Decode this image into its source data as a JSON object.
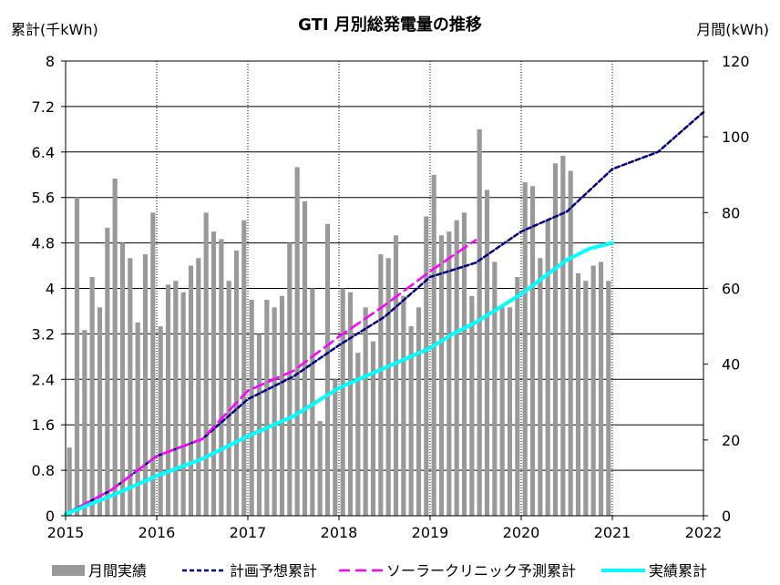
{
  "chart_data": {
    "type": "bar+line",
    "title": "GTI 月別総発電量の推移",
    "y_left_label": "累計(千kWh)",
    "y_right_label": "月間(kWh)",
    "y_left_range": [
      0,
      8
    ],
    "y_left_ticks": [
      "0",
      "0.8",
      "1.6",
      "2.4",
      "3.2",
      "4",
      "4.8",
      "5.6",
      "6.4",
      "7.2",
      "8"
    ],
    "y_right_range": [
      0,
      120
    ],
    "y_right_ticks": [
      "0",
      "20",
      "40",
      "60",
      "80",
      "100",
      "120"
    ],
    "x_range": [
      2015,
      2022
    ],
    "x_ticks": [
      "2015",
      "2016",
      "2017",
      "2018",
      "2019",
      "2020",
      "2021",
      "2022"
    ],
    "grid": true,
    "legend_position": "bottom",
    "legend": [
      "月間実績",
      "計画予想累計",
      "ソーラークリニック予測累計",
      "実績累計"
    ],
    "monthly_series": {
      "name": "月間実績",
      "axis": "right",
      "start": "2015-01",
      "values": [
        18,
        84,
        49,
        63,
        55,
        76,
        89,
        72,
        68,
        51,
        69,
        80,
        50,
        61,
        62,
        59,
        66,
        68,
        80,
        75,
        73,
        62,
        70,
        78,
        57,
        48,
        57,
        55,
        58,
        72,
        92,
        83,
        60,
        25,
        77,
        36,
        60,
        59,
        43,
        55,
        46,
        69,
        68,
        74,
        58,
        50,
        55,
        79,
        90,
        74,
        75,
        78,
        80,
        58,
        102,
        86,
        67,
        55,
        55,
        63,
        88,
        87,
        68,
        78,
        93,
        95,
        91,
        64,
        62,
        66,
        67,
        62
      ]
    },
    "lines": [
      {
        "name": "実績累計",
        "axis": "left",
        "color": "#00ffff",
        "points": [
          [
            2015.0,
            0.03
          ],
          [
            2015.5,
            0.35
          ],
          [
            2016.0,
            0.7
          ],
          [
            2016.5,
            1.0
          ],
          [
            2017.0,
            1.4
          ],
          [
            2017.5,
            1.75
          ],
          [
            2017.75,
            2.0
          ],
          [
            2018.0,
            2.25
          ],
          [
            2018.5,
            2.6
          ],
          [
            2019.0,
            2.95
          ],
          [
            2019.25,
            3.2
          ],
          [
            2019.5,
            3.4
          ],
          [
            2019.75,
            3.65
          ],
          [
            2020.0,
            3.9
          ],
          [
            2020.25,
            4.2
          ],
          [
            2020.5,
            4.5
          ],
          [
            2020.75,
            4.7
          ],
          [
            2021.0,
            4.8
          ]
        ]
      },
      {
        "name": "計画予想累計",
        "axis": "left",
        "color": "#000080",
        "points": [
          [
            2015.0,
            0.03
          ],
          [
            2015.5,
            0.45
          ],
          [
            2016.0,
            1.05
          ],
          [
            2016.5,
            1.35
          ],
          [
            2017.0,
            2.05
          ],
          [
            2017.5,
            2.45
          ],
          [
            2018.0,
            3.0
          ],
          [
            2018.5,
            3.5
          ],
          [
            2019.0,
            4.2
          ],
          [
            2019.5,
            4.45
          ],
          [
            2020.0,
            5.0
          ],
          [
            2020.5,
            5.35
          ],
          [
            2021.0,
            6.1
          ],
          [
            2021.5,
            6.4
          ],
          [
            2022.0,
            7.1
          ]
        ]
      },
      {
        "name": "ソーラークリニック予測累計",
        "axis": "left",
        "color": "#ff00ff",
        "points": [
          [
            2015.0,
            0.03
          ],
          [
            2015.5,
            0.45
          ],
          [
            2016.0,
            1.05
          ],
          [
            2016.5,
            1.35
          ],
          [
            2017.0,
            2.2
          ],
          [
            2017.5,
            2.55
          ],
          [
            2018.0,
            3.15
          ],
          [
            2018.5,
            3.7
          ],
          [
            2019.0,
            4.3
          ],
          [
            2019.5,
            4.85
          ]
        ]
      }
    ]
  }
}
